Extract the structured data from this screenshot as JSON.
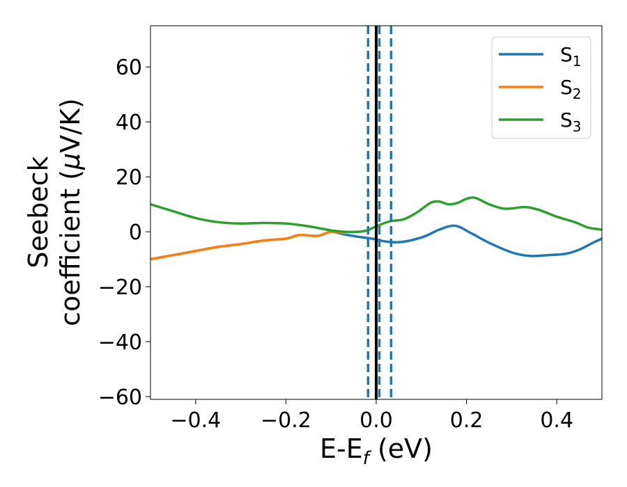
{
  "chart_data": {
    "type": "line",
    "title": "",
    "xlabel": {
      "main": "E-E",
      "sub": "f",
      "tail": " (eV)"
    },
    "ylabel": {
      "line1": "Seebeck",
      "line2_a": "coefficient  (",
      "line2_mu": "μ",
      "line2_b": "V/K)"
    },
    "xlim": [
      -0.5,
      0.5
    ],
    "ylim": [
      -61,
      75
    ],
    "xticks": [
      -0.4,
      -0.2,
      0.0,
      0.2,
      0.4
    ],
    "xtick_labels": [
      "−0.4",
      "−0.2",
      "0.0",
      "0.2",
      "0.4"
    ],
    "yticks": [
      -60,
      -40,
      -20,
      0,
      20,
      40,
      60
    ],
    "ytick_labels": [
      "−60",
      "−40",
      "−20",
      "0",
      "20",
      "40",
      "60"
    ],
    "grid": false,
    "legend_position": "top-right",
    "series": [
      {
        "name": "S",
        "name_sub": "1",
        "color": "#1f77b4",
        "x": [
          -0.5,
          -0.45,
          -0.4,
          -0.35,
          -0.3,
          -0.25,
          -0.2,
          -0.17,
          -0.13,
          -0.1,
          -0.07,
          -0.04,
          -0.01,
          0.02,
          0.05,
          0.08,
          0.11,
          0.14,
          0.175,
          0.21,
          0.25,
          0.3,
          0.34,
          0.38,
          0.42,
          0.45,
          0.48,
          0.5
        ],
        "y": [
          -10,
          -8.5,
          -7,
          -5.5,
          -4.5,
          -3.2,
          -2.5,
          -1.2,
          -1.5,
          0,
          -1,
          -1.8,
          -2.5,
          -3.5,
          -3.8,
          -3,
          -1.5,
          0.8,
          2.2,
          -0.5,
          -4,
          -7.5,
          -8.8,
          -8.5,
          -8,
          -6.5,
          -4,
          -2.5
        ]
      },
      {
        "name": "S",
        "name_sub": "2",
        "color": "#ff7f0e",
        "x": [
          -0.5,
          -0.45,
          -0.4,
          -0.35,
          -0.3,
          -0.25,
          -0.2,
          -0.17,
          -0.13,
          -0.1,
          -0.07
        ],
        "y": [
          -10,
          -8.5,
          -7,
          -5.5,
          -4.5,
          -3.2,
          -2.5,
          -1.2,
          -1.5,
          0,
          -0.5
        ]
      },
      {
        "name": "S",
        "name_sub": "3",
        "color": "#2ca02c",
        "x": [
          -0.5,
          -0.45,
          -0.4,
          -0.35,
          -0.3,
          -0.25,
          -0.2,
          -0.15,
          -0.1,
          -0.07,
          -0.04,
          -0.02,
          0.0,
          0.03,
          0.06,
          0.09,
          0.12,
          0.14,
          0.16,
          0.18,
          0.2,
          0.22,
          0.25,
          0.28,
          0.3,
          0.33,
          0.36,
          0.4,
          0.44,
          0.47,
          0.5
        ],
        "y": [
          10,
          7.5,
          5,
          3.5,
          3,
          3.2,
          3,
          2,
          0.5,
          0,
          0,
          0.5,
          2,
          3.8,
          4.5,
          7,
          10.5,
          11,
          10,
          10.5,
          12,
          12.3,
          10,
          8.5,
          8.5,
          9,
          8,
          5.5,
          3.5,
          1.5,
          0.8
        ]
      }
    ],
    "vlines": [
      {
        "x": -0.018,
        "style": "dashed",
        "color": "#1f77b4"
      },
      {
        "x": 0.007,
        "style": "dashed",
        "color": "#1f77b4"
      },
      {
        "x": 0.033,
        "style": "dashed",
        "color": "#1f77b4"
      },
      {
        "x": 0.0,
        "style": "solid",
        "color": "#000000"
      }
    ]
  }
}
